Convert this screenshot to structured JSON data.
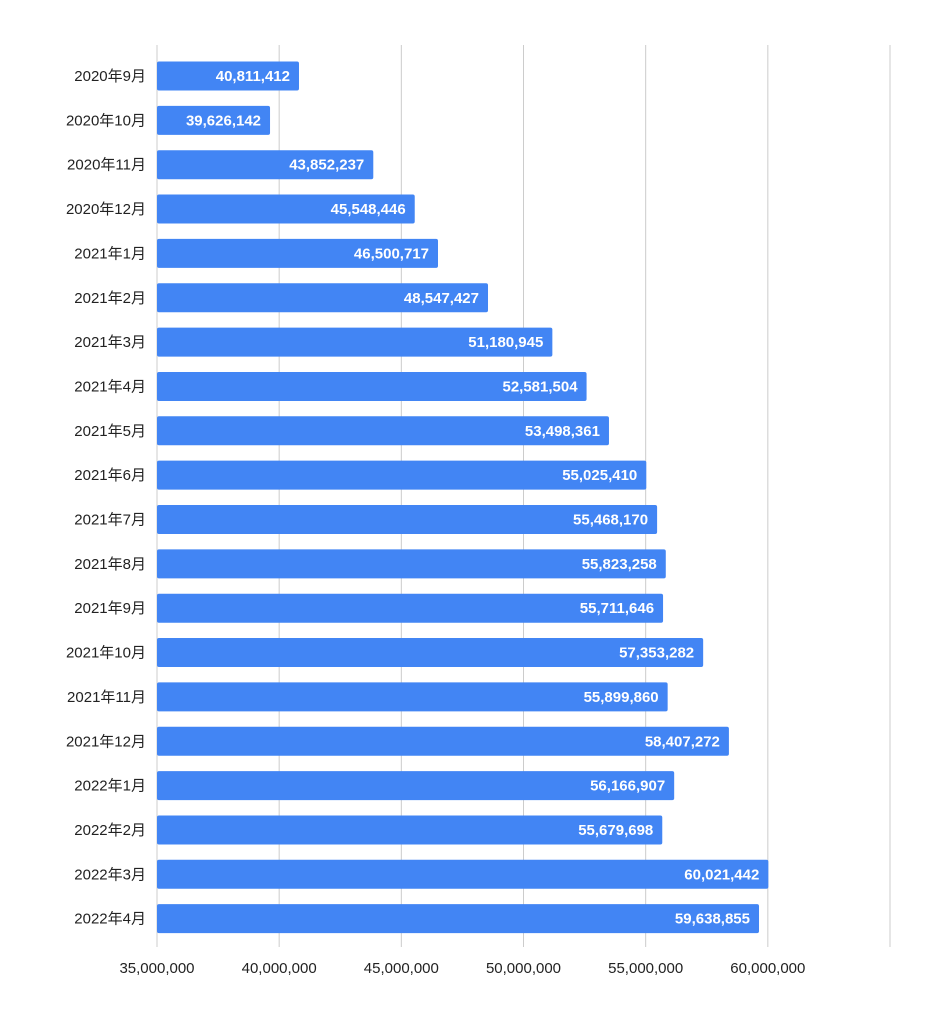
{
  "chart_data": {
    "type": "bar",
    "orientation": "horizontal",
    "title": "",
    "xlabel": "",
    "ylabel": "",
    "categories": [
      "2020年9月",
      "2020年10月",
      "2020年11月",
      "2020年12月",
      "2021年1月",
      "2021年2月",
      "2021年3月",
      "2021年4月",
      "2021年5月",
      "2021年6月",
      "2021年7月",
      "2021年8月",
      "2021年9月",
      "2021年10月",
      "2021年11月",
      "2021年12月",
      "2022年1月",
      "2022年2月",
      "2022年3月",
      "2022年4月"
    ],
    "values": [
      40811412,
      39626142,
      43852237,
      45548446,
      46500717,
      48547427,
      51180945,
      52581504,
      53498361,
      55025410,
      55468170,
      55823258,
      55711646,
      57353282,
      55899860,
      58407272,
      56166907,
      55679698,
      60021442,
      59638855
    ],
    "value_labels": [
      "40,811,412",
      "39,626,142",
      "43,852,237",
      "45,548,446",
      "46,500,717",
      "48,547,427",
      "51,180,945",
      "52,581,504",
      "53,498,361",
      "55,025,410",
      "55,468,170",
      "55,823,258",
      "55,711,646",
      "57,353,282",
      "55,899,860",
      "58,407,272",
      "56,166,907",
      "55,679,698",
      "60,021,442",
      "59,638,855"
    ],
    "xlim": [
      35000000,
      65000000
    ],
    "x_ticks": [
      35000000,
      40000000,
      45000000,
      50000000,
      55000000,
      60000000,
      65000000
    ],
    "x_tick_labels": [
      "35,000,000",
      "40,000,000",
      "45,000,000",
      "50,000,000",
      "55,000,000",
      "60,000,000",
      ""
    ],
    "grid": true,
    "legend": "none",
    "colors": {
      "bar": "#4285f4",
      "gridline": "#cccccc",
      "bar_label": "#ffffff",
      "text": "#222222"
    }
  }
}
